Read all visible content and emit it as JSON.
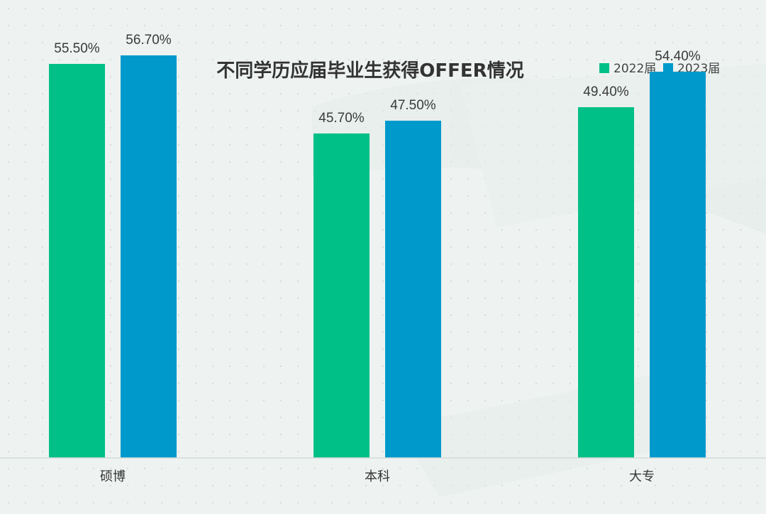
{
  "chart_data": {
    "type": "bar",
    "title": "不同学历应届毕业生获得OFFER情况",
    "categories": [
      "硕博",
      "本科",
      "大专"
    ],
    "series": [
      {
        "name": "2022届",
        "values": [
          55.5,
          45.7,
          49.4
        ],
        "labels": [
          "55.50%",
          "45.70%",
          "49.40%"
        ],
        "color": "#00c087"
      },
      {
        "name": "2023届",
        "values": [
          56.7,
          47.5,
          54.4
        ],
        "labels": [
          "56.70%",
          "47.50%",
          "54.40%"
        ],
        "color": "#0099cc"
      }
    ],
    "value_unit": "%",
    "ylim": [
      0,
      60
    ],
    "grid": false,
    "y_axis_shown": false,
    "legend_position": "top-right"
  }
}
